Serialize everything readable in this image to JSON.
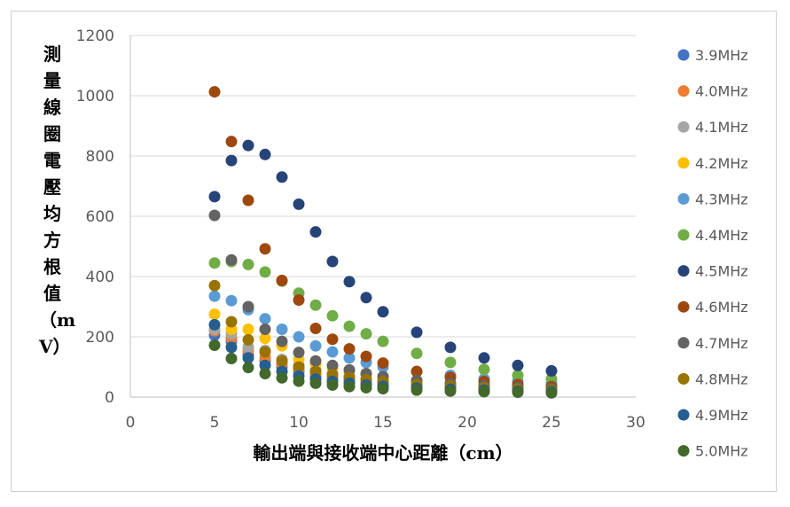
{
  "chart_data": {
    "type": "scatter",
    "title": "",
    "xlabel": "輸出端與接收端中心距離（cm）",
    "ylabel": "測量線圈電壓均方根值（mV）",
    "xlim": [
      0,
      30
    ],
    "ylim": [
      0,
      1200
    ],
    "x_ticks": [
      "0",
      "5",
      "10",
      "15",
      "20",
      "25",
      "30"
    ],
    "y_ticks": [
      "0",
      "200",
      "400",
      "600",
      "800",
      "1000",
      "1200"
    ],
    "grid": "horizontal",
    "legend_position": "right",
    "x": [
      5,
      6,
      7,
      8,
      9,
      10,
      11,
      12,
      13,
      14,
      15,
      17,
      19,
      21,
      23,
      25
    ],
    "series": [
      {
        "name": "3.9MHz",
        "color": "#4472C4",
        "values": [
          205,
          185,
          140,
          120,
          100,
          85,
          70,
          62,
          55,
          48,
          42,
          35,
          30,
          27,
          24,
          22
        ]
      },
      {
        "name": "4.0MHz",
        "color": "#ED7D31",
        "values": [
          220,
          195,
          155,
          130,
          110,
          92,
          78,
          68,
          60,
          52,
          46,
          38,
          32,
          28,
          25,
          23
        ]
      },
      {
        "name": "4.1MHz",
        "color": "#A5A5A5",
        "values": [
          225,
          210,
          165,
          155,
          125,
          105,
          90,
          78,
          70,
          62,
          55,
          46,
          40,
          35,
          30,
          28
        ]
      },
      {
        "name": "4.2MHz",
        "color": "#FFC000",
        "values": [
          275,
          225,
          225,
          195,
          170,
          125,
          110,
          95,
          85,
          75,
          65,
          55,
          47,
          40,
          35,
          32
        ]
      },
      {
        "name": "4.3MHz",
        "color": "#5B9BD5",
        "values": [
          335,
          320,
          290,
          260,
          225,
          200,
          170,
          150,
          130,
          115,
          100,
          85,
          72,
          60,
          52,
          46
        ]
      },
      {
        "name": "4.4MHz",
        "color": "#70AD47",
        "values": [
          445,
          450,
          440,
          415,
          385,
          345,
          305,
          270,
          235,
          210,
          185,
          145,
          115,
          92,
          72,
          60
        ]
      },
      {
        "name": "4.5MHz",
        "color": "#264478",
        "values": [
          665,
          785,
          835,
          805,
          730,
          640,
          548,
          450,
          383,
          330,
          283,
          215,
          165,
          130,
          105,
          87
        ]
      },
      {
        "name": "4.6MHz",
        "color": "#9E480E",
        "values": [
          1013,
          848,
          653,
          492,
          387,
          322,
          228,
          192,
          160,
          135,
          113,
          85,
          65,
          52,
          42,
          35
        ]
      },
      {
        "name": "4.7MHz",
        "color": "#636363",
        "values": [
          603,
          455,
          300,
          225,
          185,
          148,
          120,
          105,
          90,
          78,
          68,
          55,
          45,
          38,
          32,
          28
        ]
      },
      {
        "name": "4.8MHz",
        "color": "#997300",
        "values": [
          370,
          250,
          190,
          150,
          120,
          100,
          85,
          75,
          65,
          58,
          52,
          42,
          36,
          31,
          27,
          24
        ]
      },
      {
        "name": "4.9MHz",
        "color": "#255E91",
        "values": [
          240,
          165,
          130,
          105,
          85,
          70,
          60,
          52,
          46,
          40,
          36,
          30,
          26,
          23,
          20,
          18
        ]
      },
      {
        "name": "5.0MHz",
        "color": "#43682B",
        "values": [
          172,
          128,
          98,
          78,
          64,
          53,
          46,
          40,
          35,
          31,
          28,
          23,
          20,
          18,
          16,
          14
        ]
      }
    ]
  }
}
